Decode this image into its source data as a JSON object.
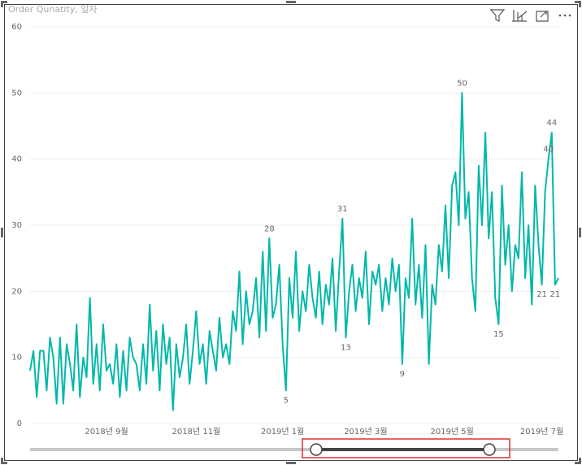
{
  "chart_data": {
    "type": "line",
    "title": "Order Qunatity, 일자",
    "color": "#01B8AA",
    "grid": true,
    "ylim": [
      0,
      60
    ],
    "yticks": [
      0,
      10,
      20,
      30,
      40,
      50,
      60
    ],
    "categories": [
      null,
      null,
      null,
      null,
      null,
      null,
      null,
      null,
      null,
      null,
      null,
      null,
      null,
      null,
      null,
      null,
      null,
      null,
      null,
      null,
      null,
      null,
      null,
      "2018년 9월",
      null,
      null,
      null,
      null,
      null,
      null,
      null,
      null,
      null,
      null,
      null,
      null,
      null,
      null,
      null,
      null,
      null,
      null,
      null,
      null,
      null,
      null,
      null,
      null,
      null,
      null,
      "2018년 11월",
      null,
      null,
      null,
      null,
      null,
      null,
      null,
      null,
      null,
      null,
      null,
      null,
      null,
      null,
      null,
      null,
      null,
      null,
      null,
      null,
      null,
      null,
      null,
      null,
      null,
      "2019년 1월",
      null,
      null,
      null,
      null,
      null,
      null,
      null,
      null,
      null,
      null,
      null,
      null,
      null,
      null,
      null,
      null,
      null,
      null,
      null,
      null,
      null,
      null,
      null,
      null,
      "2019년 3월",
      null,
      null,
      null,
      null,
      null,
      null,
      null,
      null,
      null,
      null,
      null,
      null,
      null,
      null,
      null,
      null,
      null,
      null,
      null,
      null,
      null,
      null,
      null,
      null,
      null,
      "2019년 5월",
      null,
      null,
      null,
      null,
      null,
      null,
      null,
      null,
      null,
      null,
      null,
      null,
      null,
      null,
      null,
      null,
      null,
      null,
      null,
      null,
      null,
      null,
      null,
      null,
      null,
      null,
      "2019년 7월",
      null,
      null,
      null,
      null,
      null
    ],
    "values": [
      8,
      11,
      4,
      11,
      11,
      5,
      13,
      10,
      3,
      13,
      3,
      12,
      9,
      5,
      15,
      4,
      10,
      7,
      19,
      6,
      12,
      5,
      15,
      8,
      9,
      6,
      12,
      4,
      11,
      5,
      13,
      10,
      9,
      5,
      12,
      6,
      18,
      8,
      14,
      5,
      15,
      9,
      13,
      2,
      12,
      7,
      10,
      15,
      6,
      11,
      17,
      9,
      12,
      6,
      14,
      11,
      8,
      16,
      10,
      12,
      9,
      17,
      14,
      23,
      12,
      20,
      15,
      17,
      22,
      13,
      26,
      14,
      28,
      16,
      18,
      24,
      12,
      5,
      22,
      16,
      26,
      14,
      20,
      17,
      24,
      19,
      16,
      23,
      15,
      21,
      18,
      25,
      14,
      23,
      31,
      13,
      20,
      24,
      17,
      22,
      19,
      26,
      15,
      23,
      21,
      24,
      17,
      22,
      18,
      25,
      20,
      24,
      9,
      22,
      19,
      31,
      18,
      24,
      16,
      27,
      9,
      21,
      18,
      27,
      23,
      33,
      22,
      36,
      38,
      30,
      50,
      31,
      35,
      22,
      17,
      39,
      30,
      44,
      28,
      35,
      19,
      15,
      36,
      24,
      30,
      20,
      27,
      25,
      38,
      22,
      30,
      18,
      36,
      27,
      21,
      35,
      40,
      44,
      21,
      22
    ],
    "value_labels": [
      null,
      null,
      null,
      null,
      null,
      null,
      null,
      null,
      null,
      null,
      null,
      null,
      null,
      null,
      null,
      null,
      null,
      null,
      null,
      null,
      null,
      null,
      null,
      null,
      null,
      null,
      null,
      null,
      null,
      null,
      null,
      null,
      null,
      null,
      null,
      null,
      null,
      null,
      null,
      null,
      null,
      null,
      null,
      null,
      null,
      null,
      null,
      null,
      null,
      null,
      null,
      null,
      null,
      null,
      null,
      null,
      null,
      null,
      null,
      null,
      null,
      null,
      null,
      null,
      null,
      null,
      null,
      null,
      null,
      null,
      null,
      null,
      "28",
      null,
      null,
      null,
      null,
      "5",
      null,
      null,
      null,
      null,
      null,
      null,
      null,
      null,
      null,
      null,
      null,
      null,
      null,
      null,
      null,
      null,
      "31",
      "13",
      null,
      null,
      null,
      null,
      null,
      null,
      null,
      null,
      null,
      null,
      null,
      null,
      null,
      null,
      null,
      null,
      "9",
      null,
      null,
      null,
      null,
      null,
      null,
      null,
      null,
      null,
      null,
      null,
      null,
      null,
      null,
      null,
      null,
      null,
      "50",
      null,
      null,
      null,
      null,
      null,
      null,
      null,
      null,
      null,
      null,
      "15",
      null,
      null,
      null,
      null,
      null,
      null,
      null,
      null,
      null,
      null,
      null,
      null,
      "21",
      null,
      "40",
      "44",
      "21",
      null
    ]
  }
}
